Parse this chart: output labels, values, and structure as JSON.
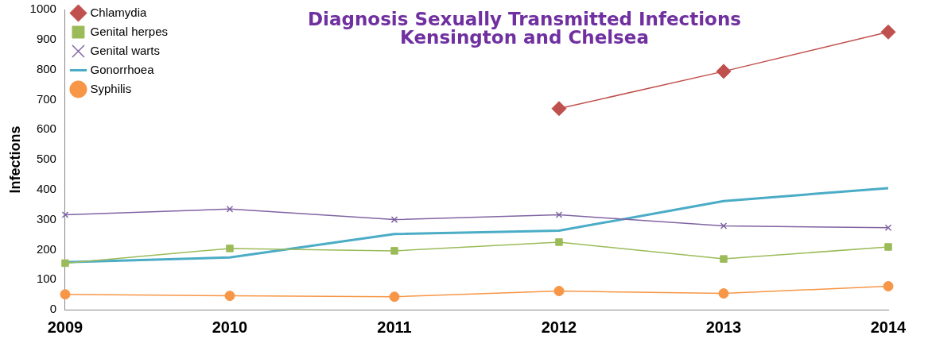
{
  "chart_data": {
    "type": "line",
    "title": "Diagnosis Sexually Transmitted Infections\nKensington and Chelsea",
    "ylabel": "Infections",
    "categories": [
      "2009",
      "2010",
      "2011",
      "2012",
      "2013",
      "2014"
    ],
    "series": [
      {
        "name": "Chlamydia",
        "color": "#c0504d",
        "marker": "diamond",
        "values": [
          null,
          null,
          null,
          670,
          794,
          925
        ]
      },
      {
        "name": "Genital herpes",
        "color": "#9bbb59",
        "marker": "square",
        "values": [
          155,
          204,
          196,
          225,
          169,
          209
        ]
      },
      {
        "name": "Genital warts",
        "color": "#8064a2",
        "marker": "cross",
        "values": [
          316,
          335,
          300,
          316,
          279,
          273
        ]
      },
      {
        "name": "Gonorrhoea",
        "color": "#4bacc6",
        "marker": "none",
        "values": [
          158,
          174,
          252,
          263,
          362,
          405
        ]
      },
      {
        "name": "Syphilis",
        "color": "#f79646",
        "marker": "circle",
        "values": [
          51,
          46,
          43,
          62,
          54,
          78
        ]
      }
    ],
    "ylim": [
      0,
      1000
    ],
    "yticks": [
      0,
      100,
      200,
      300,
      400,
      500,
      600,
      700,
      800,
      900,
      1000
    ],
    "grid": false,
    "legend": "top left"
  }
}
